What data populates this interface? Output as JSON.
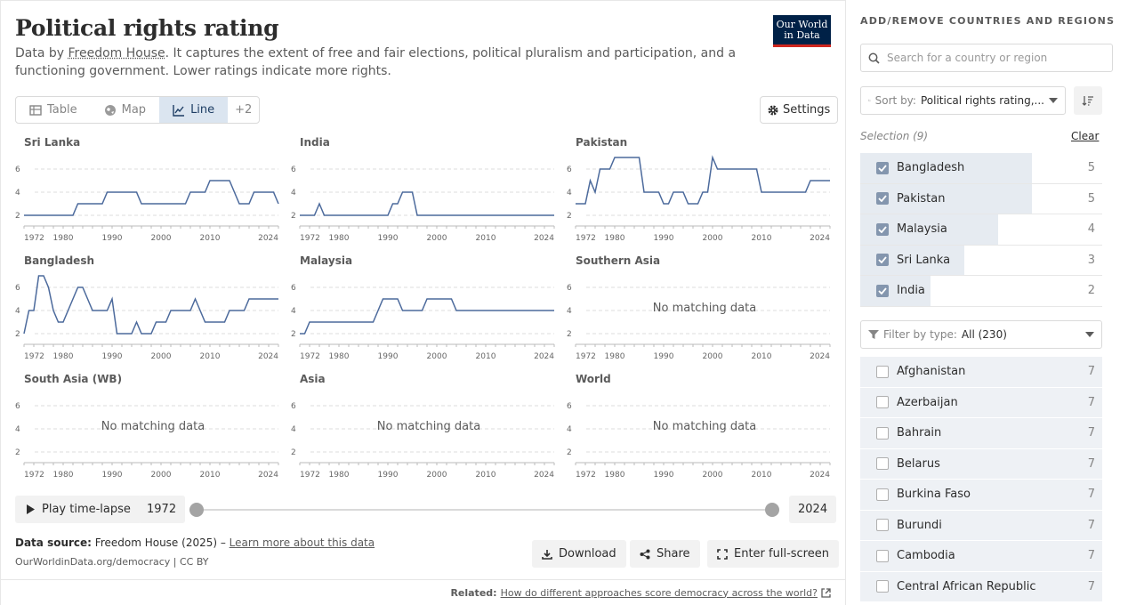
{
  "header": {
    "title": "Political rights rating",
    "subtitle_prefix": "Data by ",
    "subtitle_source": "Freedom House",
    "subtitle_rest": ". It captures the extent of free and fair elections, political pluralism and participation, and a functioning government. Lower ratings indicate more rights.",
    "logo_line1": "Our World",
    "logo_line2": "in Data"
  },
  "tabs": {
    "table": "Table",
    "map": "Map",
    "line": "Line",
    "more": "+2",
    "settings": "Settings"
  },
  "colors": {
    "series": "#4c6a9c",
    "accent_bg": "#dbe5f0"
  },
  "chart_data": [
    {
      "type": "line",
      "title": "Sri Lanka",
      "ylim": [
        1,
        7
      ],
      "yticks": [
        2,
        4,
        6
      ],
      "xticks": [
        1972,
        1980,
        1990,
        2000,
        2010,
        2024
      ],
      "x": [
        1972,
        1973,
        1974,
        1975,
        1976,
        1977,
        1978,
        1979,
        1980,
        1981,
        1982,
        1983,
        1984,
        1985,
        1986,
        1987,
        1988,
        1989,
        1990,
        1991,
        1992,
        1993,
        1994,
        1995,
        1996,
        1997,
        1998,
        1999,
        2000,
        2001,
        2002,
        2003,
        2004,
        2005,
        2006,
        2007,
        2008,
        2009,
        2010,
        2011,
        2012,
        2013,
        2014,
        2015,
        2016,
        2017,
        2018,
        2019,
        2020,
        2021,
        2022,
        2023,
        2024
      ],
      "values": [
        2,
        2,
        2,
        2,
        2,
        2,
        2,
        2,
        2,
        2,
        2,
        3,
        3,
        3,
        3,
        3,
        3,
        4,
        4,
        4,
        4,
        4,
        4,
        4,
        3,
        3,
        3,
        3,
        3,
        3,
        3,
        3,
        3,
        3,
        4,
        4,
        4,
        4,
        5,
        5,
        5,
        5,
        5,
        4,
        3,
        3,
        3,
        4,
        4,
        4,
        4,
        4,
        3
      ]
    },
    {
      "type": "line",
      "title": "India",
      "ylim": [
        1,
        7
      ],
      "yticks": [
        2,
        4,
        6
      ],
      "xticks": [
        1972,
        1980,
        1990,
        2000,
        2010,
        2024
      ],
      "x": [
        1972,
        1973,
        1974,
        1975,
        1976,
        1977,
        1978,
        1979,
        1980,
        1981,
        1982,
        1983,
        1984,
        1985,
        1986,
        1987,
        1988,
        1989,
        1990,
        1991,
        1992,
        1993,
        1994,
        1995,
        1996,
        1997,
        1998,
        1999,
        2000,
        2001,
        2002,
        2003,
        2004,
        2005,
        2006,
        2007,
        2008,
        2009,
        2010,
        2011,
        2012,
        2013,
        2014,
        2015,
        2016,
        2017,
        2018,
        2019,
        2020,
        2021,
        2022,
        2023,
        2024
      ],
      "values": [
        2,
        2,
        2,
        2,
        3,
        2,
        2,
        2,
        2,
        2,
        2,
        2,
        2,
        2,
        2,
        2,
        2,
        2,
        2,
        3,
        3,
        4,
        4,
        4,
        2,
        2,
        2,
        2,
        2,
        2,
        2,
        2,
        2,
        2,
        2,
        2,
        2,
        2,
        2,
        2,
        2,
        2,
        2,
        2,
        2,
        2,
        2,
        2,
        2,
        2,
        2,
        2,
        2
      ]
    },
    {
      "type": "line",
      "title": "Pakistan",
      "ylim": [
        1,
        7
      ],
      "yticks": [
        2,
        4,
        6
      ],
      "xticks": [
        1972,
        1980,
        1990,
        2000,
        2010,
        2024
      ],
      "x": [
        1972,
        1973,
        1974,
        1975,
        1976,
        1977,
        1978,
        1979,
        1980,
        1981,
        1982,
        1983,
        1984,
        1985,
        1986,
        1987,
        1988,
        1989,
        1990,
        1991,
        1992,
        1993,
        1994,
        1995,
        1996,
        1997,
        1998,
        1999,
        2000,
        2001,
        2002,
        2003,
        2004,
        2005,
        2006,
        2007,
        2008,
        2009,
        2010,
        2011,
        2012,
        2013,
        2014,
        2015,
        2016,
        2017,
        2018,
        2019,
        2020,
        2021,
        2022,
        2023,
        2024
      ],
      "values": [
        3,
        3,
        3,
        5,
        4,
        6,
        6,
        6,
        7,
        7,
        7,
        7,
        7,
        7,
        4,
        4,
        4,
        4,
        3,
        3,
        4,
        4,
        4,
        3,
        3,
        3,
        4,
        4,
        7,
        6,
        6,
        6,
        6,
        6,
        6,
        6,
        6,
        6,
        4,
        4,
        4,
        4,
        4,
        4,
        4,
        4,
        4,
        4,
        5,
        5,
        5,
        5,
        5
      ]
    },
    {
      "type": "line",
      "title": "Bangladesh",
      "ylim": [
        1,
        7
      ],
      "yticks": [
        2,
        4,
        6
      ],
      "xticks": [
        1972,
        1980,
        1990,
        2000,
        2010,
        2024
      ],
      "x": [
        1972,
        1973,
        1974,
        1975,
        1976,
        1977,
        1978,
        1979,
        1980,
        1981,
        1982,
        1983,
        1984,
        1985,
        1986,
        1987,
        1988,
        1989,
        1990,
        1991,
        1992,
        1993,
        1994,
        1995,
        1996,
        1997,
        1998,
        1999,
        2000,
        2001,
        2002,
        2003,
        2004,
        2005,
        2006,
        2007,
        2008,
        2009,
        2010,
        2011,
        2012,
        2013,
        2014,
        2015,
        2016,
        2017,
        2018,
        2019,
        2020,
        2021,
        2022,
        2023,
        2024
      ],
      "values": [
        2,
        4,
        4,
        7,
        7,
        6,
        4,
        3,
        3,
        4,
        5,
        6,
        6,
        5,
        4,
        4,
        4,
        4,
        5,
        2,
        2,
        2,
        2,
        3,
        2,
        2,
        2,
        3,
        3,
        3,
        4,
        4,
        4,
        4,
        4,
        5,
        4,
        3,
        3,
        3,
        3,
        3,
        4,
        4,
        4,
        4,
        5,
        5,
        5,
        5,
        5,
        5,
        5
      ]
    },
    {
      "type": "line",
      "title": "Malaysia",
      "ylim": [
        1,
        7
      ],
      "yticks": [
        2,
        4,
        6
      ],
      "xticks": [
        1972,
        1980,
        1990,
        2000,
        2010,
        2024
      ],
      "x": [
        1972,
        1973,
        1974,
        1975,
        1976,
        1977,
        1978,
        1979,
        1980,
        1981,
        1982,
        1983,
        1984,
        1985,
        1986,
        1987,
        1988,
        1989,
        1990,
        1991,
        1992,
        1993,
        1994,
        1995,
        1996,
        1997,
        1998,
        1999,
        2000,
        2001,
        2002,
        2003,
        2004,
        2005,
        2006,
        2007,
        2008,
        2009,
        2010,
        2011,
        2012,
        2013,
        2014,
        2015,
        2016,
        2017,
        2018,
        2019,
        2020,
        2021,
        2022,
        2023,
        2024
      ],
      "values": [
        2,
        2,
        3,
        3,
        3,
        3,
        3,
        3,
        3,
        3,
        3,
        3,
        3,
        3,
        3,
        3,
        4,
        5,
        5,
        5,
        5,
        4,
        4,
        4,
        4,
        4,
        5,
        5,
        5,
        5,
        5,
        5,
        4,
        4,
        4,
        4,
        4,
        4,
        4,
        4,
        4,
        4,
        4,
        4,
        4,
        4,
        4,
        4,
        4,
        4,
        4,
        4,
        4
      ]
    },
    {
      "type": "line",
      "title": "Southern Asia",
      "ylim": [
        1,
        7
      ],
      "yticks": [
        2,
        4,
        6
      ],
      "xticks": [
        1972,
        1980,
        1990,
        2000,
        2010,
        2024
      ],
      "x": [],
      "values": [],
      "empty_text": "No matching data"
    },
    {
      "type": "line",
      "title": "South Asia (WB)",
      "ylim": [
        1,
        7
      ],
      "yticks": [
        2,
        4,
        6
      ],
      "xticks": [
        1972,
        1980,
        1990,
        2000,
        2010,
        2024
      ],
      "x": [],
      "values": [],
      "empty_text": "No matching data"
    },
    {
      "type": "line",
      "title": "Asia",
      "ylim": [
        1,
        7
      ],
      "yticks": [
        2,
        4,
        6
      ],
      "xticks": [
        1972,
        1980,
        1990,
        2000,
        2010,
        2024
      ],
      "x": [],
      "values": [],
      "empty_text": "No matching data"
    },
    {
      "type": "line",
      "title": "World",
      "ylim": [
        1,
        7
      ],
      "yticks": [
        2,
        4,
        6
      ],
      "xticks": [
        1972,
        1980,
        1990,
        2000,
        2010,
        2024
      ],
      "x": [],
      "values": [],
      "empty_text": "No matching data"
    }
  ],
  "timeline": {
    "play_label": "Play time-lapse",
    "start": "1972",
    "end": "2024"
  },
  "footer": {
    "data_source_label": "Data source:",
    "data_source": " Freedom House (2025) – ",
    "learn_more": "Learn more about this data",
    "url": "OurWorldinData.org/democracy | CC BY",
    "download": "Download",
    "share": "Share",
    "fullscreen": "Enter full-screen",
    "related_label": "Related:",
    "related_link": "How do different approaches score democracy across the world?"
  },
  "sidebar": {
    "heading": "ADD/REMOVE COUNTRIES AND REGIONS",
    "search_placeholder": "Search for a country or region",
    "sort_label": "Sort by:",
    "sort_value": "Political rights rating,...",
    "selection_label": "Selection (9)",
    "clear": "Clear",
    "selected": [
      {
        "name": "Bangladesh",
        "value": "5",
        "frac": 0.71
      },
      {
        "name": "Pakistan",
        "value": "5",
        "frac": 0.71
      },
      {
        "name": "Malaysia",
        "value": "4",
        "frac": 0.57
      },
      {
        "name": "Sri Lanka",
        "value": "3",
        "frac": 0.43
      },
      {
        "name": "India",
        "value": "2",
        "frac": 0.29
      }
    ],
    "filter_label": "Filter by type:",
    "filter_value": "All (230)",
    "available": [
      {
        "name": "Afghanistan",
        "value": "7"
      },
      {
        "name": "Azerbaijan",
        "value": "7"
      },
      {
        "name": "Bahrain",
        "value": "7"
      },
      {
        "name": "Belarus",
        "value": "7"
      },
      {
        "name": "Burkina Faso",
        "value": "7"
      },
      {
        "name": "Burundi",
        "value": "7"
      },
      {
        "name": "Cambodia",
        "value": "7"
      },
      {
        "name": "Central African Republic",
        "value": "7"
      }
    ]
  }
}
